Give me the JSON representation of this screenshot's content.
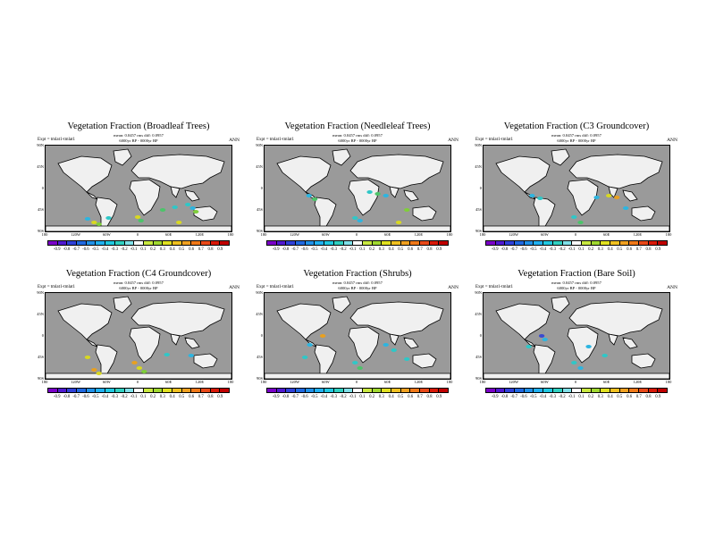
{
  "panels": [
    {
      "title": "Vegetation Fraction (Broadleaf Trees)",
      "stats_line1": "mean: 0.0457 rms diff: 0.0957",
      "stats_line2": "6000yr BP - 0000yr BP",
      "expt": "Expt = tmlat1-tmlat1",
      "period": "ANN",
      "blobs": [
        [
          78,
          107,
          "#2fc7c7"
        ],
        [
          60,
          112,
          "#d8d820"
        ],
        [
          66,
          114,
          "#7fce3a"
        ],
        [
          52,
          108,
          "#2db5e0"
        ],
        [
          114,
          106,
          "#d8d820"
        ],
        [
          118,
          110,
          "#4cc46a"
        ],
        [
          176,
          92,
          "#2fc7c7"
        ],
        [
          182,
          96,
          "#2db5e0"
        ],
        [
          186,
          100,
          "#7fce3a"
        ],
        [
          165,
          112,
          "#d8d820"
        ],
        [
          168,
          139,
          "#2fc7c7"
        ],
        [
          172,
          142,
          "#2db5e0"
        ],
        [
          145,
          98,
          "#4cc46a"
        ],
        [
          160,
          95,
          "#2fc7c7"
        ]
      ]
    },
    {
      "title": "Vegetation Fraction (Needleleaf Trees)",
      "stats_line1": "mean: 0.0457 rms diff: 0.0957",
      "stats_line2": "6000yr BP - 0000yr BP",
      "expt": "Expt = tmlat1-tmlat1",
      "period": "ANN",
      "blobs": [
        [
          55,
          82,
          "#2db5e0"
        ],
        [
          62,
          86,
          "#4cc46a"
        ],
        [
          130,
          78,
          "#2fc7c7"
        ],
        [
          140,
          80,
          "#4cc46a"
        ],
        [
          150,
          82,
          "#2db5e0"
        ],
        [
          166,
          112,
          "#d8d820"
        ],
        [
          112,
          107,
          "#2fc7c7"
        ],
        [
          118,
          110,
          "#2db5e0"
        ],
        [
          176,
          98,
          "#7fce3a"
        ],
        [
          170,
          140,
          "#2fc7c7"
        ]
      ]
    },
    {
      "title": "Vegetation Fraction (C3 Groundcover)",
      "stats_line1": "mean: 0.0457 rms diff: 0.0957",
      "stats_line2": "6000yr BP - 0000yr BP",
      "expt": "Expt = tmlat1-tmlat1",
      "period": "ANN",
      "blobs": [
        [
          60,
          82,
          "#2db5e0"
        ],
        [
          70,
          85,
          "#2fc7c7"
        ],
        [
          155,
          82,
          "#d8d820"
        ],
        [
          165,
          84,
          "#e8a020"
        ],
        [
          112,
          106,
          "#2fc7c7"
        ],
        [
          120,
          112,
          "#4cc46a"
        ],
        [
          176,
          96,
          "#2db5e0"
        ],
        [
          168,
          142,
          "#2fc7c7"
        ],
        [
          140,
          84,
          "#2db5e0"
        ]
      ]
    },
    {
      "title": "Vegetation Fraction (C4 Groundcover)",
      "stats_line1": "mean: 0.0457 rms diff: 0.0957",
      "stats_line2": "6000yr BP - 0000yr BP",
      "expt": "Expt = tmlat1-tmlat1",
      "period": "ANN",
      "blobs": [
        [
          52,
          98,
          "#d8d820"
        ],
        [
          60,
          112,
          "#e8a020"
        ],
        [
          66,
          116,
          "#d8d820"
        ],
        [
          110,
          104,
          "#e8a020"
        ],
        [
          116,
          110,
          "#d8d820"
        ],
        [
          122,
          114,
          "#7fce3a"
        ],
        [
          170,
          140,
          "#d8d820"
        ],
        [
          176,
          144,
          "#e8a020"
        ],
        [
          150,
          95,
          "#2fc7c7"
        ],
        [
          180,
          96,
          "#2db5e0"
        ]
      ]
    },
    {
      "title": "Vegetation Fraction (Shrubs)",
      "stats_line1": "mean: 0.0457 rms diff: 0.0957",
      "stats_line2": "6000yr BP - 0000yr BP",
      "expt": "Expt = tmlat1-tmlat1",
      "period": "ANN",
      "blobs": [
        [
          72,
          74,
          "#e8a020"
        ],
        [
          56,
          84,
          "#2db5e0"
        ],
        [
          50,
          98,
          "#2fc7c7"
        ],
        [
          150,
          84,
          "#2db5e0"
        ],
        [
          160,
          90,
          "#2fc7c7"
        ],
        [
          112,
          104,
          "#2fc7c7"
        ],
        [
          118,
          110,
          "#4cc46a"
        ],
        [
          170,
          140,
          "#2db5e0"
        ],
        [
          176,
          100,
          "#2fc7c7"
        ]
      ]
    },
    {
      "title": "Vegetation Fraction (Bare Soil)",
      "stats_line1": "mean: 0.0457 rms diff: 0.0957",
      "stats_line2": "6000yr BP - 0000yr BP",
      "expt": "Expt = tmlat1-tmlat1",
      "period": "ANN",
      "blobs": [
        [
          72,
          74,
          "#3a4ad0"
        ],
        [
          76,
          78,
          "#2db5e0"
        ],
        [
          56,
          86,
          "#2fc7c7"
        ],
        [
          112,
          104,
          "#2fc7c7"
        ],
        [
          120,
          110,
          "#2db5e0"
        ],
        [
          150,
          96,
          "#2fc7c7"
        ],
        [
          168,
          140,
          "#2fc7c7"
        ],
        [
          130,
          86,
          "#2db5e0"
        ]
      ]
    }
  ],
  "lat_labels": [
    "90N",
    "45N",
    "0",
    "45S",
    "90S"
  ],
  "lon_labels": [
    "180",
    "120W",
    "60W",
    "0",
    "60E",
    "120E",
    "180"
  ],
  "colorbar": {
    "labels": [
      "-0.9",
      "-0.8",
      "-0.7",
      "-0.6",
      "-0.5",
      "-0.4",
      "-0.3",
      "-0.2",
      "-0.1",
      "0.1",
      "0.2",
      "0.3",
      "0.4",
      "0.5",
      "0.6",
      "0.7",
      "0.8",
      "0.9"
    ],
    "colors": [
      "#7a00c8",
      "#5018d0",
      "#3040d8",
      "#2068e0",
      "#2090e8",
      "#20b0f0",
      "#20c8e0",
      "#30d0c0",
      "#80e0e8",
      "#ffffff",
      "#c8e840",
      "#a0d830",
      "#e0e020",
      "#f0c020",
      "#f0a020",
      "#f07818",
      "#e84818",
      "#d81808",
      "#c00000"
    ]
  }
}
